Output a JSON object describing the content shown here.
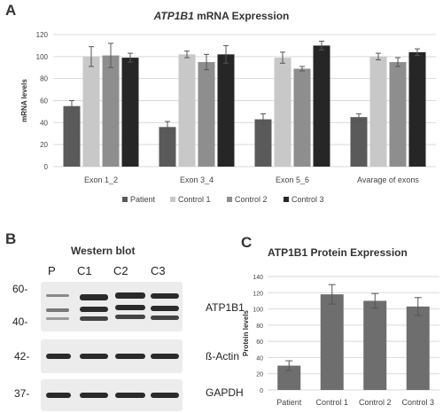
{
  "panels": {
    "a": {
      "letter": "A"
    },
    "b": {
      "letter": "B",
      "title": "Western blot",
      "lanes": [
        "P",
        "C1",
        "C2",
        "C3"
      ],
      "markers": [
        "60-",
        "40-",
        "42-",
        "37-"
      ],
      "rows": [
        "ATP1B1",
        "ß-Actin",
        "GAPDH"
      ]
    },
    "c": {
      "letter": "C"
    }
  },
  "chart_data": [
    {
      "type": "bar",
      "title_italic": "ATP1B1",
      "title_rest": " mRNA Expression",
      "ylabel": "mRNA levels",
      "ylim": [
        0,
        120
      ],
      "yticks": [
        0,
        20,
        40,
        60,
        80,
        100,
        120
      ],
      "grid": true,
      "legend_placement": "bottom",
      "categories": [
        "Exon 1_2",
        "Exon 3_4",
        "Exon 5_6",
        "Avarage of exons"
      ],
      "series": [
        {
          "name": "Patient",
          "color": "#5a5a5a",
          "values": [
            55,
            36,
            43,
            45
          ],
          "errors": [
            5,
            5,
            5,
            3
          ]
        },
        {
          "name": "Control 1",
          "color": "#c8c8c8",
          "values": [
            100,
            102,
            99,
            100
          ],
          "errors": [
            9,
            3,
            5,
            3
          ]
        },
        {
          "name": "Control 2",
          "color": "#8e8e8e",
          "values": [
            101,
            95,
            89,
            95
          ],
          "errors": [
            11,
            7,
            2,
            4
          ]
        },
        {
          "name": "Control 3",
          "color": "#262626",
          "values": [
            99,
            102,
            110,
            104
          ],
          "errors": [
            4,
            8,
            4,
            3
          ]
        }
      ]
    },
    {
      "type": "bar",
      "title": "ATP1B1 Protein Expression",
      "ylabel": "Protein levels",
      "ylim": [
        0,
        140
      ],
      "yticks": [
        0,
        20,
        40,
        60,
        80,
        100,
        120,
        140
      ],
      "grid": true,
      "categories": [
        "Patient",
        "Control 1",
        "Control 2",
        "Control 3"
      ],
      "values": [
        30,
        118,
        110,
        103
      ],
      "errors": [
        6,
        12,
        9,
        11
      ],
      "color": "#6e6e6e"
    }
  ]
}
